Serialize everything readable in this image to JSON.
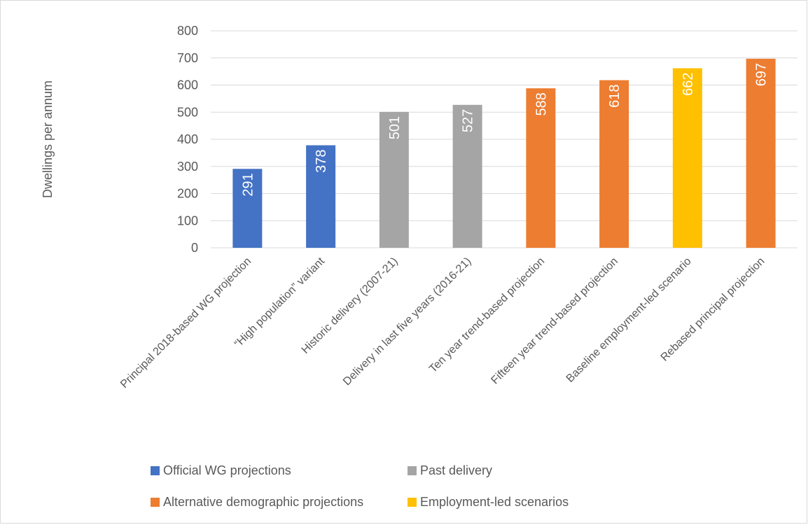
{
  "chart_data": {
    "type": "bar",
    "ylabel": "Dwellings per annum",
    "xlabel": "",
    "ylim": [
      0,
      800
    ],
    "yticks": [
      0,
      100,
      200,
      300,
      400,
      500,
      600,
      700,
      800
    ],
    "grid": true,
    "legend_position": "bottom",
    "categories": [
      "Principal 2018-based WG projection",
      "“High population” variant",
      "Historic delivery (2007-21)",
      "Delivery in last five years (2016-21)",
      "Ten year trend-based projection",
      "Fifteen year trend-based projection",
      "Baseline employment-led scenario",
      "Rebased principal projection"
    ],
    "values": [
      291,
      378,
      501,
      527,
      588,
      618,
      662,
      697
    ],
    "bar_group": [
      0,
      0,
      1,
      1,
      2,
      2,
      3,
      2
    ],
    "groups": [
      {
        "name": "Official WG projections",
        "color": "#4472c4"
      },
      {
        "name": "Past delivery",
        "color": "#a5a5a5"
      },
      {
        "name": "Alternative demographic projections",
        "color": "#ed7d31"
      },
      {
        "name": "Employment-led scenarios",
        "color": "#ffc000"
      }
    ],
    "gridline_color": "#d9d9d9"
  }
}
